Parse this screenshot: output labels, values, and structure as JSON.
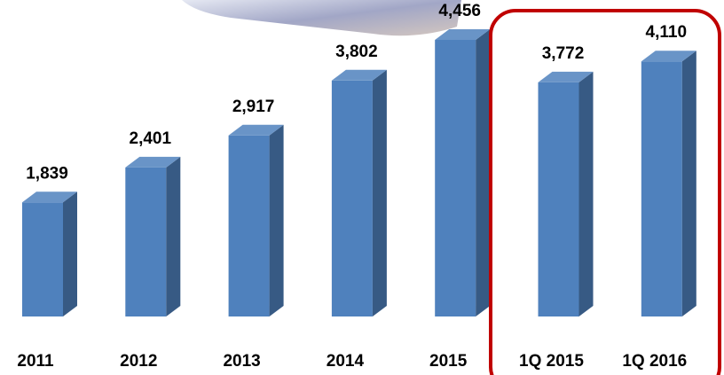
{
  "chart_data": {
    "type": "bar3d",
    "categories": [
      "2011",
      "2012",
      "2013",
      "2014",
      "2015",
      "1Q 2015",
      "1Q 2016"
    ],
    "values": [
      1839,
      2401,
      2917,
      3802,
      4456,
      3772,
      4110
    ],
    "value_labels": [
      "1,839",
      "2,401",
      "2,917",
      "3,802",
      "4,456",
      "3,772",
      "4,110"
    ],
    "color": "#4f81bd",
    "highlight_color": "#c00000"
  }
}
